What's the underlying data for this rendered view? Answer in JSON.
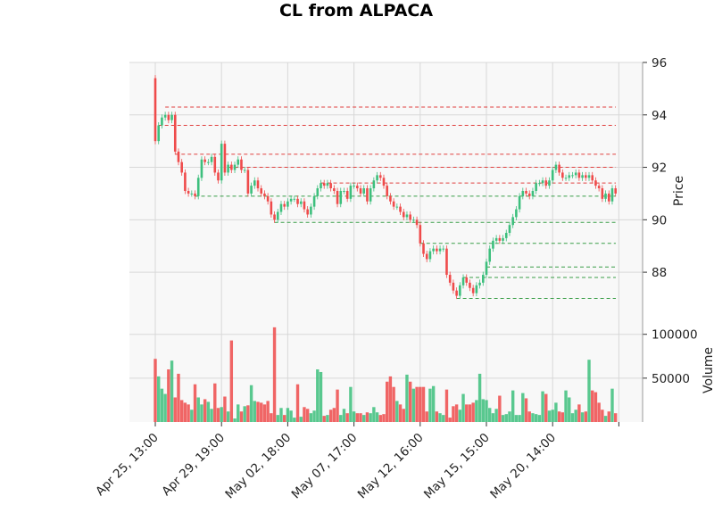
{
  "chart_data": {
    "type": "candlestick",
    "title": "CL from ALPACA",
    "colors": {
      "up": "#3dbf7d",
      "down": "#ef4b4b",
      "panel_bg": "#f8f8f8",
      "grid": "#d8d8d8"
    },
    "price_panel": {
      "ylabel": "Price",
      "ylim": [
        86.2,
        96.0
      ],
      "yticks": [
        88,
        90,
        92,
        94,
        96
      ],
      "grid": true
    },
    "volume_panel": {
      "ylabel": "Volume",
      "ylim": [
        0,
        117000
      ],
      "yticks": [
        50000,
        100000
      ],
      "ytick_labels": [
        "50000",
        "100000"
      ],
      "grid": true
    },
    "x_tick_labels": [
      {
        "index": 0,
        "label": "Apr 25, 13:00"
      },
      {
        "index": 20,
        "label": "Apr 29, 19:00"
      },
      {
        "index": 40,
        "label": "May 02, 18:00"
      },
      {
        "index": 60,
        "label": "May 07, 17:00"
      },
      {
        "index": 80,
        "label": "May 12, 16:00"
      },
      {
        "index": 100,
        "label": "May 15, 15:00"
      },
      {
        "index": 120,
        "label": "May 20, 14:00"
      },
      {
        "index": 140,
        "label": ""
      }
    ],
    "closes": [
      93.0,
      93.6,
      93.9,
      94.0,
      93.8,
      94.0,
      92.6,
      92.2,
      91.8,
      91.1,
      91.0,
      91.0,
      90.9,
      91.6,
      92.3,
      92.2,
      92.2,
      92.4,
      91.8,
      91.5,
      92.9,
      91.8,
      92.1,
      91.9,
      92.1,
      92.3,
      91.9,
      91.9,
      91.0,
      91.3,
      91.5,
      91.2,
      91.0,
      90.9,
      90.7,
      90.2,
      90.0,
      90.3,
      90.6,
      90.5,
      90.7,
      90.8,
      90.8,
      90.6,
      90.7,
      90.4,
      90.2,
      90.5,
      90.9,
      91.2,
      91.4,
      91.3,
      91.4,
      91.2,
      91.1,
      90.6,
      91.1,
      91.1,
      90.8,
      91.3,
      91.3,
      91.2,
      91.0,
      91.2,
      90.7,
      91.2,
      91.5,
      91.7,
      91.6,
      91.3,
      90.9,
      90.7,
      90.5,
      90.5,
      90.3,
      90.1,
      90.2,
      90.0,
      90.0,
      89.8,
      89.1,
      88.7,
      88.5,
      88.8,
      88.9,
      88.8,
      88.9,
      88.9,
      87.9,
      87.6,
      87.3,
      87.1,
      87.5,
      87.8,
      87.6,
      87.4,
      87.2,
      87.5,
      87.6,
      87.9,
      88.4,
      88.9,
      89.2,
      89.3,
      89.2,
      89.3,
      89.5,
      89.8,
      90.1,
      90.4,
      90.9,
      91.1,
      91.0,
      90.9,
      91.1,
      91.4,
      91.4,
      91.5,
      91.3,
      91.5,
      91.9,
      92.1,
      91.8,
      91.6,
      91.6,
      91.7,
      91.7,
      91.8,
      91.6,
      91.7,
      91.6,
      91.7,
      91.5,
      91.3,
      91.2,
      90.8,
      91.0,
      90.7,
      91.2,
      91.0
    ],
    "volumes": [
      72000,
      52000,
      38000,
      32000,
      60000,
      70000,
      28000,
      55000,
      25000,
      22000,
      20000,
      14000,
      43000,
      28000,
      20000,
      26000,
      23000,
      15000,
      44000,
      16000,
      17000,
      29000,
      12000,
      93000,
      4000,
      20000,
      12000,
      18000,
      19000,
      42000,
      24000,
      23000,
      22000,
      20000,
      24000,
      10000,
      108000,
      8000,
      16000,
      8000,
      16000,
      13000,
      5000,
      43000,
      6000,
      17000,
      15000,
      10000,
      13000,
      60000,
      57000,
      7000,
      8000,
      14000,
      16000,
      37000,
      8000,
      15000,
      10000,
      40000,
      12000,
      10000,
      10000,
      8000,
      11000,
      10000,
      17000,
      11000,
      8000,
      9000,
      46000,
      52000,
      40000,
      24000,
      20000,
      15000,
      54000,
      46000,
      38000,
      40000,
      40000,
      40000,
      12000,
      38000,
      41000,
      12000,
      10000,
      8000,
      37000,
      5000,
      18000,
      20000,
      14000,
      32000,
      20000,
      20000,
      22000,
      25000,
      55000,
      26000,
      25000,
      16000,
      10000,
      15000,
      30000,
      8000,
      9000,
      12000,
      36000,
      8000,
      8000,
      33000,
      27000,
      12000,
      10000,
      9000,
      8000,
      35000,
      32000,
      13000,
      14000,
      22000,
      12000,
      11000,
      36000,
      28000,
      10000,
      14000,
      20000,
      11000,
      12000,
      71000,
      36000,
      34000,
      22000,
      14000,
      7000,
      12000,
      38000,
      10000
    ],
    "resistance_levels": [
      94.3,
      93.6,
      92.5,
      92.0,
      91.4
    ],
    "support_levels": [
      90.9,
      89.9,
      89.1,
      88.2,
      87.8,
      87.0
    ]
  }
}
